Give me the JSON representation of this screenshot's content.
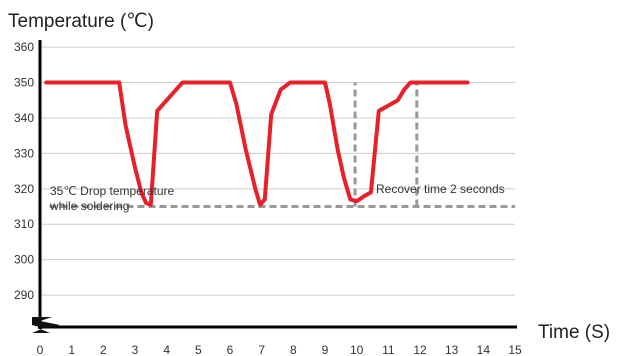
{
  "chart_data": {
    "type": "line",
    "ylabel": "Temperature (℃)",
    "xlabel": "Time (S)",
    "xlim": [
      0,
      15
    ],
    "ylim": [
      281,
      362
    ],
    "x_ticks": [
      0,
      1,
      2,
      3,
      4,
      5,
      6,
      7,
      8,
      9,
      10,
      11,
      12,
      13,
      14,
      15
    ],
    "y_ticks": [
      290,
      300,
      310,
      320,
      330,
      340,
      350,
      360
    ],
    "grid": "horizontal",
    "colors": {
      "series": "#e8202a",
      "reference": "#999999",
      "grid": "#cccccc",
      "axis": "#000000"
    },
    "series": [
      {
        "x": [
          0.2,
          2.5,
          2.7,
          3.0,
          3.2,
          3.35,
          3.5,
          3.7,
          4.0,
          4.5,
          6.0,
          6.2,
          6.5,
          6.8,
          6.95,
          7.1,
          7.3,
          7.6,
          7.9,
          9.0,
          9.15,
          9.4,
          9.6,
          9.8,
          10.0,
          10.25,
          10.45,
          10.7,
          11.3,
          11.5,
          11.7,
          13.5
        ],
        "y": [
          350,
          350,
          338,
          326,
          319,
          316,
          315.5,
          342,
          345,
          350,
          350,
          344,
          331,
          320,
          315.5,
          317,
          341,
          348,
          350,
          350,
          344,
          331,
          323,
          317,
          316.5,
          318,
          319,
          342,
          345,
          348,
          350,
          350
        ]
      }
    ],
    "reference_lines": [
      {
        "orientation": "horizontal",
        "y": 315,
        "x_range": [
          0.3,
          15
        ]
      },
      {
        "orientation": "vertical",
        "x": 9.95,
        "y_range": [
          315,
          350
        ]
      },
      {
        "orientation": "vertical",
        "x": 11.9,
        "y_range": [
          315,
          350
        ]
      }
    ],
    "annotations": {
      "drop_line1": "35℃ Drop temperature",
      "drop_line2": "while soldering",
      "recover": "Recover time 2 seconds"
    }
  }
}
